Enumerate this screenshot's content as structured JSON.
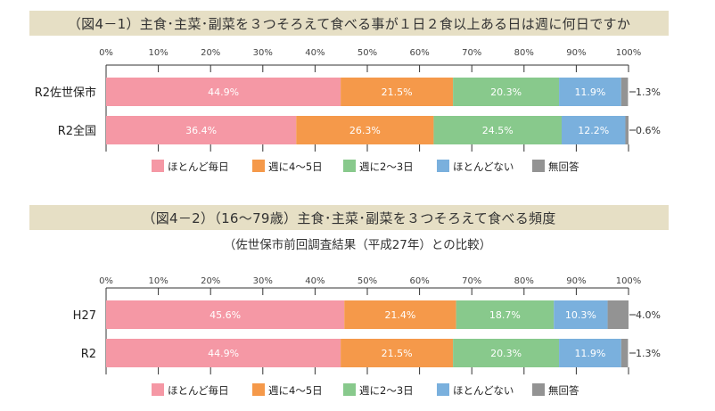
{
  "colors": {
    "band": "#e6dfc5",
    "series": [
      "#f598a5",
      "#f5994a",
      "#88c98c",
      "#7ab0dd",
      "#939393"
    ]
  },
  "chart_data": [
    {
      "type": "bar",
      "orientation": "horizontal-stacked-100",
      "title": "（図4－1）主食･主菜･副菜を３つそろえて食べる事が１日２食以上ある日は週に何日ですか",
      "subtitle": "",
      "categories": [
        "R2佐世保市",
        "R2全国"
      ],
      "xticks": [
        "0%",
        "10%",
        "20%",
        "30%",
        "40%",
        "50%",
        "60%",
        "70%",
        "80%",
        "90%",
        "100%"
      ],
      "xlim": [
        0,
        100
      ],
      "legend_position": "bottom",
      "grid": false,
      "series": [
        {
          "name": "ほとんど毎日",
          "values": [
            44.9,
            36.4
          ],
          "labels": [
            "44.9%",
            "36.4%"
          ]
        },
        {
          "name": "週に4～5日",
          "values": [
            21.5,
            26.3
          ],
          "labels": [
            "21.5%",
            "26.3%"
          ]
        },
        {
          "name": "週に2～3日",
          "values": [
            20.3,
            24.5
          ],
          "labels": [
            "20.3%",
            "24.5%"
          ]
        },
        {
          "name": "ほとんどない",
          "values": [
            11.9,
            12.2
          ],
          "labels": [
            "11.9%",
            "12.2%"
          ]
        },
        {
          "name": "無回答",
          "values": [
            1.3,
            0.6
          ],
          "labels": [
            "1.3%",
            "0.6%"
          ]
        }
      ]
    },
    {
      "type": "bar",
      "orientation": "horizontal-stacked-100",
      "title": "（図4－2）（16～79歳）主食･主菜･副菜を３つそろえて食べる頻度",
      "subtitle": "（佐世保市前回調査結果（平成27年）との比較）",
      "categories": [
        "H27",
        "R2"
      ],
      "xticks": [
        "0%",
        "10%",
        "20%",
        "30%",
        "40%",
        "50%",
        "60%",
        "70%",
        "80%",
        "90%",
        "100%"
      ],
      "xlim": [
        0,
        100
      ],
      "legend_position": "bottom",
      "grid": false,
      "series": [
        {
          "name": "ほとんど毎日",
          "values": [
            45.6,
            44.9
          ],
          "labels": [
            "45.6%",
            "44.9%"
          ]
        },
        {
          "name": "週に4～5日",
          "values": [
            21.4,
            21.5
          ],
          "labels": [
            "21.4%",
            "21.5%"
          ]
        },
        {
          "name": "週に2～3日",
          "values": [
            18.7,
            20.3
          ],
          "labels": [
            "18.7%",
            "20.3%"
          ]
        },
        {
          "name": "ほとんどない",
          "values": [
            10.3,
            11.9
          ],
          "labels": [
            "10.3%",
            "11.9%"
          ]
        },
        {
          "name": "無回答",
          "values": [
            4.0,
            1.3
          ],
          "labels": [
            "4.0%",
            "1.3%"
          ]
        }
      ]
    }
  ]
}
